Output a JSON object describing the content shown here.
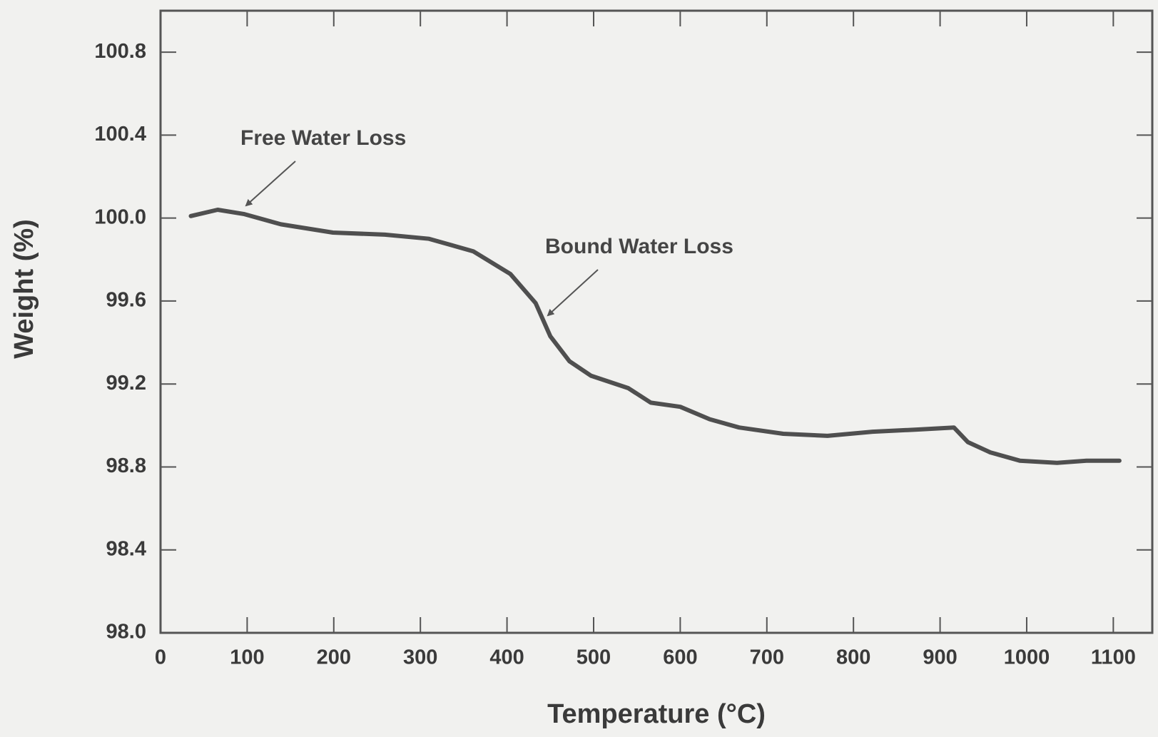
{
  "chart_data": {
    "type": "line",
    "xlabel": "Temperature (°C)",
    "ylabel": "Weight (%)",
    "annotations": [
      "Free Water Loss",
      "Bound Water Loss"
    ],
    "xlim": [
      0,
      1145
    ],
    "ylim": [
      98,
      101
    ],
    "xticks": [
      0,
      100,
      200,
      300,
      400,
      500,
      600,
      700,
      800,
      900,
      1000,
      1100
    ],
    "yticks": [
      {
        "value": 98,
        "label": "98.0"
      },
      {
        "value": 98.4,
        "label": "98.4"
      },
      {
        "value": 98.8,
        "label": "98.8"
      },
      {
        "value": 99.2,
        "label": "99.2"
      },
      {
        "value": 99.6,
        "label": "99.6"
      },
      {
        "value": 100,
        "label": "100.0"
      },
      {
        "value": 100.4,
        "label": "100.4"
      },
      {
        "value": 100.8,
        "label": "100.8"
      }
    ],
    "color": "#4f4f4f",
    "x": [
      35,
      66,
      96,
      139,
      199,
      259,
      310,
      361,
      404,
      433,
      450,
      472,
      497,
      540,
      566,
      600,
      634,
      668,
      719,
      770,
      822,
      873,
      916,
      932,
      958,
      992,
      1035,
      1069,
      1107
    ],
    "values": [
      100.01,
      100.04,
      100.02,
      99.97,
      99.93,
      99.92,
      99.9,
      99.84,
      99.73,
      99.59,
      99.43,
      99.31,
      99.24,
      99.18,
      99.11,
      99.09,
      99.03,
      98.99,
      98.96,
      98.95,
      98.97,
      98.98,
      98.99,
      98.92,
      98.87,
      98.83,
      98.82,
      98.83,
      98.83
    ]
  }
}
